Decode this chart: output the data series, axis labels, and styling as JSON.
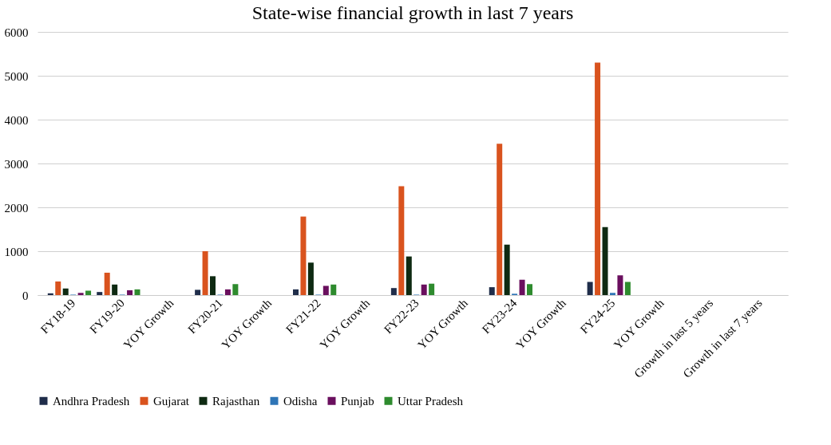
{
  "chart_data": {
    "type": "bar",
    "title": "State-wise financial growth in last 7 years",
    "categories": [
      "FY18-19",
      "FY19-20",
      "YOY Growth",
      "FY20-21",
      "YOY Growth",
      "FY21-22",
      "YOY Growth",
      "FY22-23",
      "YOY Growth",
      "FY23-24",
      "YOY Growth",
      "FY24-25",
      "YOY Growth",
      "Growth in last 5 years",
      "Growth in last 7 years"
    ],
    "series": [
      {
        "name": "Andhra Pradesh",
        "color": "#1f2d4a",
        "values": [
          40,
          70,
          null,
          120,
          null,
          130,
          null,
          160,
          null,
          180,
          null,
          300,
          null,
          null,
          null
        ]
      },
      {
        "name": "Gujarat",
        "color": "#d9531e",
        "values": [
          310,
          510,
          null,
          1000,
          null,
          1790,
          null,
          2480,
          null,
          3450,
          null,
          5300,
          null,
          null,
          null
        ]
      },
      {
        "name": "Rajasthan",
        "color": "#0e2a12",
        "values": [
          150,
          240,
          null,
          430,
          null,
          740,
          null,
          880,
          null,
          1150,
          null,
          1550,
          null,
          null,
          null
        ]
      },
      {
        "name": "Odisha",
        "color": "#2e75b6",
        "values": [
          10,
          10,
          null,
          10,
          null,
          10,
          null,
          10,
          null,
          30,
          null,
          50,
          null,
          null,
          null
        ]
      },
      {
        "name": "Punjab",
        "color": "#6a0f5e",
        "values": [
          50,
          110,
          null,
          130,
          null,
          210,
          null,
          240,
          null,
          350,
          null,
          450,
          null,
          null,
          null
        ]
      },
      {
        "name": "Uttar Pradesh",
        "color": "#2e8b2e",
        "values": [
          100,
          130,
          null,
          250,
          null,
          240,
          null,
          260,
          null,
          250,
          null,
          300,
          null,
          null,
          null
        ]
      }
    ],
    "ylim": [
      0,
      6000
    ],
    "yticks": [
      0,
      1000,
      2000,
      3000,
      4000,
      5000,
      6000
    ],
    "grid": "y",
    "legend": "bottom"
  }
}
